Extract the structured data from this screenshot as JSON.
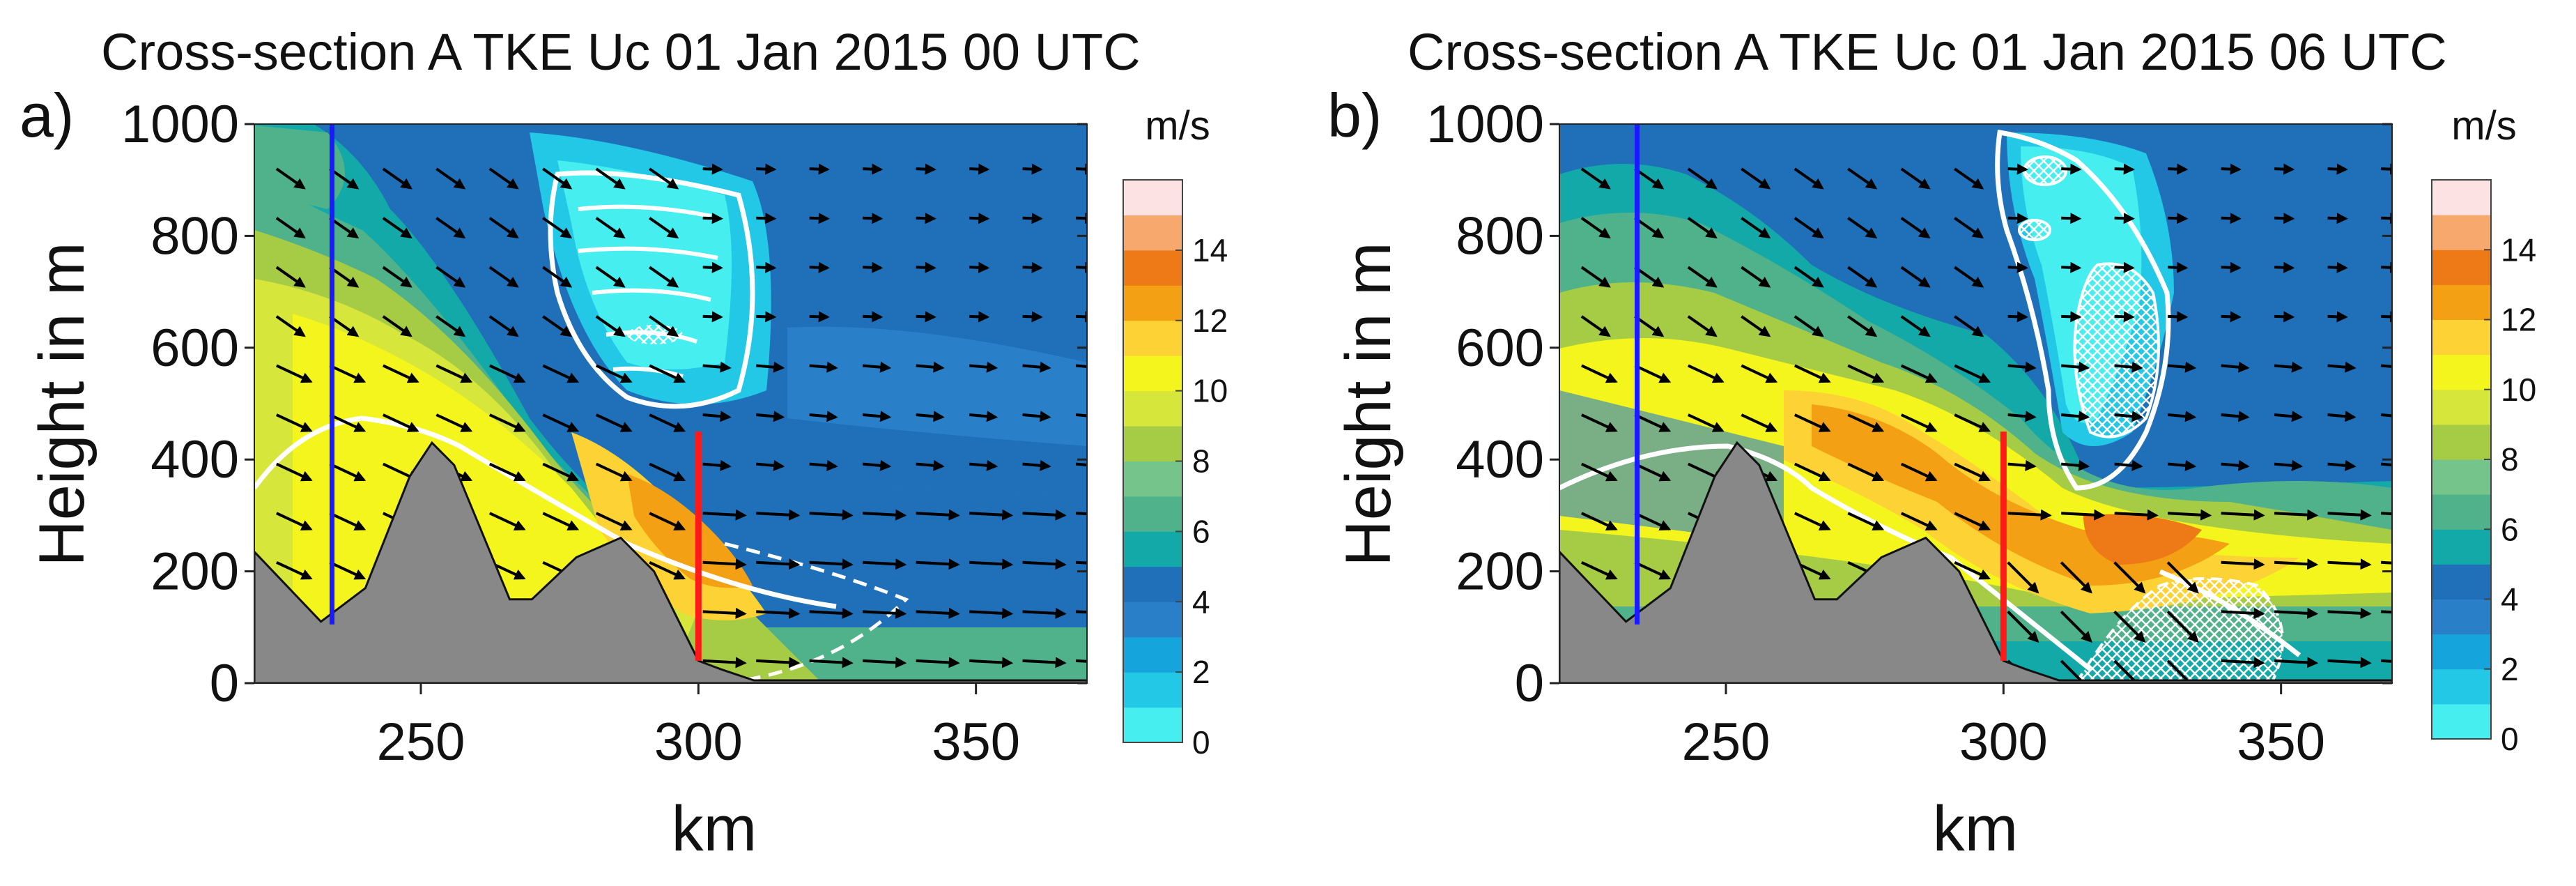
{
  "chart_data": [
    {
      "type": "heatmap",
      "panel_label": "a)",
      "title": "Cross-section A TKE Uc 01 Jan 2015 00 UTC",
      "xlabel": "km",
      "ylabel": "Height in m",
      "xlim": [
        220,
        370
      ],
      "ylim": [
        0,
        1000
      ],
      "xticks": [
        250,
        300,
        350
      ],
      "yticks": [
        0,
        200,
        400,
        600,
        800,
        1000
      ],
      "colorbar": {
        "unit": "m/s",
        "levels": [
          0,
          1,
          2,
          3,
          4,
          5,
          6,
          7,
          8,
          9,
          10,
          11,
          12,
          13,
          14,
          15
        ],
        "tick_labels": [
          0,
          2,
          4,
          6,
          8,
          10,
          12,
          14
        ],
        "colors": [
          "#47eef0",
          "#23c8e6",
          "#15a4dc",
          "#2a7fc9",
          "#1f6fb9",
          "#13a9a8",
          "#4fb28a",
          "#74c48b",
          "#a6cc45",
          "#d6e63a",
          "#f3f51c",
          "#fcd235",
          "#f4a015",
          "#ed7917",
          "#f7a86d",
          "#fde2e3"
        ]
      },
      "terrain_km_m": [
        [
          220,
          235
        ],
        [
          232,
          110
        ],
        [
          240,
          170
        ],
        [
          248,
          370
        ],
        [
          252,
          430
        ],
        [
          256,
          390
        ],
        [
          266,
          150
        ],
        [
          270,
          150
        ],
        [
          278,
          225
        ],
        [
          286,
          260
        ],
        [
          292,
          200
        ],
        [
          300,
          40
        ],
        [
          304,
          25
        ],
        [
          310,
          5
        ],
        [
          370,
          5
        ]
      ],
      "vertical_lines": [
        {
          "name": "blue-line",
          "x": 234,
          "y_top": 1000,
          "y_bottom": 105,
          "color": "#1a1aff"
        },
        {
          "name": "red-line",
          "x": 300,
          "y_top": 450,
          "y_bottom": 40,
          "color": "#ff1a1a"
        }
      ],
      "tke_contour_color": "#ffffff",
      "vectors": "horizontal wind vectors (arrows)"
    },
    {
      "type": "heatmap",
      "panel_label": "b)",
      "title": "Cross-section A TKE Uc 01 Jan 2015 06 UTC",
      "xlabel": "km",
      "ylabel": "Height in m",
      "xlim": [
        220,
        370
      ],
      "ylim": [
        0,
        1000
      ],
      "xticks": [
        250,
        300,
        350
      ],
      "yticks": [
        0,
        200,
        400,
        600,
        800,
        1000
      ],
      "colorbar": {
        "unit": "m/s",
        "levels": [
          0,
          1,
          2,
          3,
          4,
          5,
          6,
          7,
          8,
          9,
          10,
          11,
          12,
          13,
          14,
          15
        ],
        "tick_labels": [
          0,
          2,
          4,
          6,
          8,
          10,
          12,
          14
        ],
        "colors": [
          "#47eef0",
          "#23c8e6",
          "#15a4dc",
          "#2a7fc9",
          "#1f6fb9",
          "#13a9a8",
          "#4fb28a",
          "#74c48b",
          "#a6cc45",
          "#d6e63a",
          "#f3f51c",
          "#fcd235",
          "#f4a015",
          "#ed7917",
          "#f7a86d",
          "#fde2e3"
        ]
      },
      "terrain_km_m": [
        [
          220,
          235
        ],
        [
          232,
          110
        ],
        [
          240,
          170
        ],
        [
          248,
          370
        ],
        [
          252,
          430
        ],
        [
          256,
          390
        ],
        [
          266,
          150
        ],
        [
          270,
          150
        ],
        [
          278,
          225
        ],
        [
          286,
          260
        ],
        [
          292,
          200
        ],
        [
          300,
          40
        ],
        [
          304,
          25
        ],
        [
          310,
          5
        ],
        [
          370,
          5
        ]
      ],
      "vertical_lines": [
        {
          "name": "blue-line",
          "x": 234,
          "y_top": 1000,
          "y_bottom": 105,
          "color": "#1a1aff"
        },
        {
          "name": "red-line",
          "x": 300,
          "y_top": 450,
          "y_bottom": 40,
          "color": "#ff1a1a"
        }
      ],
      "tke_contour_color": "#ffffff",
      "vectors": "horizontal wind vectors (arrows)"
    }
  ]
}
